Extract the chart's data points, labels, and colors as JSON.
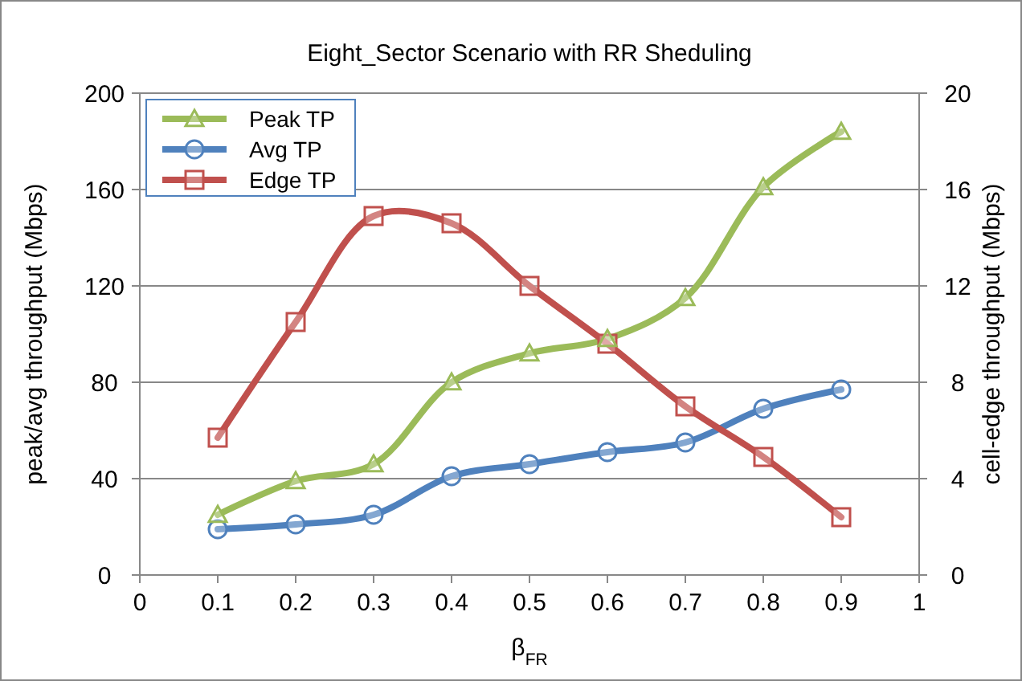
{
  "chart_data": {
    "type": "line",
    "title": "Eight_Sector Scenario with RR Sheduling",
    "xlabel": "β$_{FR}$",
    "ylabel": "peak/avg throughput (Mbps)",
    "y2label": "cell-edge throughput (Mbps)",
    "x": [
      0.1,
      0.2,
      0.3,
      0.4,
      0.5,
      0.6,
      0.7,
      0.8,
      0.9
    ],
    "series": [
      {
        "name": "Peak TP",
        "color": "#9bbb59",
        "marker": "triangle",
        "values": [
          25,
          39,
          46,
          80,
          92,
          98,
          115,
          161,
          184
        ]
      },
      {
        "name": "Avg TP",
        "color": "#4f81bd",
        "marker": "circle",
        "values": [
          19,
          21,
          25,
          41,
          46,
          51,
          55,
          69,
          77
        ]
      },
      {
        "name": "Edge TP",
        "color": "#c0504d",
        "marker": "square",
        "axis": "y2",
        "values": [
          5.7,
          10.5,
          14.9,
          14.6,
          12.0,
          9.6,
          7.0,
          4.9,
          2.4
        ]
      }
    ],
    "xlim": [
      0,
      1
    ],
    "xticks": [
      0,
      0.1,
      0.2,
      0.3,
      0.4,
      0.5,
      0.6,
      0.7,
      0.8,
      0.9,
      1
    ],
    "ylim": [
      0,
      200
    ],
    "yticks": [
      0,
      40,
      80,
      120,
      160,
      200
    ],
    "y2lim": [
      0,
      20
    ],
    "y2ticks": [
      0,
      4,
      8,
      12,
      16,
      20
    ],
    "grid": "y",
    "legend": "top left"
  }
}
